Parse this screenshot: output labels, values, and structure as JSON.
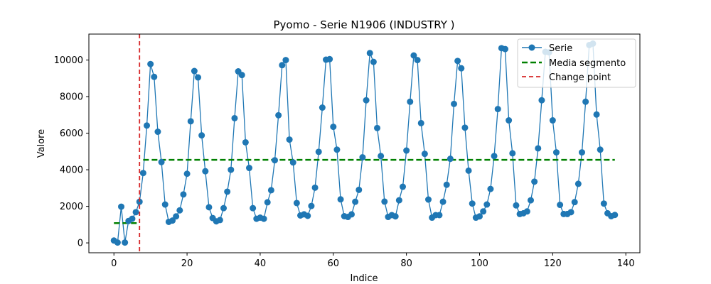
{
  "chart_data": {
    "type": "line",
    "title": "Pyomo - Serie N1906 (INDUSTRY    )",
    "xlabel": "Indice",
    "ylabel": "Valore",
    "xlim": [
      -6.85,
      143.85
    ],
    "ylim": [
      -540,
      11420
    ],
    "xticks": [
      0,
      20,
      40,
      60,
      80,
      100,
      120,
      140
    ],
    "yticks": [
      0,
      2000,
      4000,
      6000,
      8000,
      10000
    ],
    "grid": false,
    "legend_position": "top-right",
    "series": [
      {
        "name": "Serie",
        "color": "#1f77b4",
        "marker": "circle",
        "x_start": 0,
        "values": [
          130,
          20,
          1980,
          20,
          1200,
          1320,
          1680,
          2250,
          3820,
          6420,
          9780,
          9080,
          6080,
          4420,
          2100,
          1150,
          1220,
          1450,
          1780,
          2650,
          3780,
          6650,
          9400,
          9050,
          5880,
          3920,
          1950,
          1360,
          1180,
          1250,
          1900,
          2800,
          4000,
          6820,
          9380,
          9180,
          5500,
          4100,
          1900,
          1320,
          1380,
          1320,
          2220,
          2880,
          4520,
          6980,
          9720,
          10000,
          5650,
          4400,
          2180,
          1500,
          1560,
          1480,
          2020,
          3020,
          4980,
          7400,
          10020,
          10050,
          6350,
          5100,
          2380,
          1460,
          1420,
          1560,
          2250,
          2900,
          4680,
          7800,
          10380,
          9900,
          6280,
          4750,
          2260,
          1420,
          1520,
          1450,
          2330,
          3070,
          5050,
          7720,
          10250,
          10000,
          6550,
          4870,
          2370,
          1380,
          1520,
          1520,
          2250,
          3180,
          4600,
          7600,
          9950,
          9550,
          6300,
          3950,
          2150,
          1380,
          1450,
          1720,
          2100,
          2950,
          4750,
          7320,
          10650,
          10600,
          6700,
          4900,
          2050,
          1580,
          1620,
          1720,
          2330,
          3350,
          5170,
          7800,
          10450,
          10420,
          6700,
          4950,
          2080,
          1580,
          1580,
          1680,
          2230,
          3230,
          4950,
          7720,
          10820,
          10900,
          7020,
          5100,
          2150,
          1620,
          1460,
          1530
        ]
      },
      {
        "name": "Media segmento",
        "color": "#008000",
        "style": "dashed",
        "segments": [
          {
            "x": [
              0,
              7
            ],
            "y": 1080
          },
          {
            "x": [
              8,
              137
            ],
            "y": 4540
          }
        ]
      },
      {
        "name": "Change point",
        "color": "#d62728",
        "style": "dashed",
        "vertical_x": 7
      }
    ]
  }
}
